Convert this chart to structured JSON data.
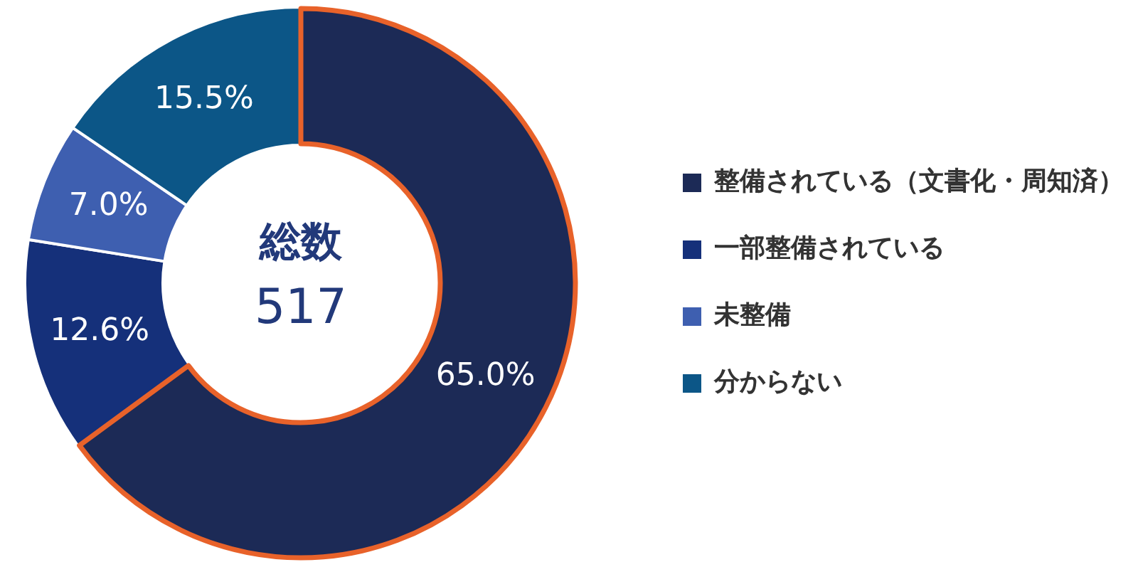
{
  "chart_data": {
    "type": "donut",
    "categories": [
      "整備されている（文書化・周知済）",
      "一部整備されている",
      "未整備",
      "分からない"
    ],
    "values": [
      65.0,
      12.6,
      7.0,
      15.5
    ],
    "colors": [
      "#1c2a56",
      "#15307a",
      "#3e5fb0",
      "#0c5687"
    ],
    "value_labels": [
      "65.0%",
      "12.6%",
      "7.0%",
      "15.5%"
    ],
    "annotations": [
      "総数",
      "517"
    ],
    "legend": "right"
  }
}
